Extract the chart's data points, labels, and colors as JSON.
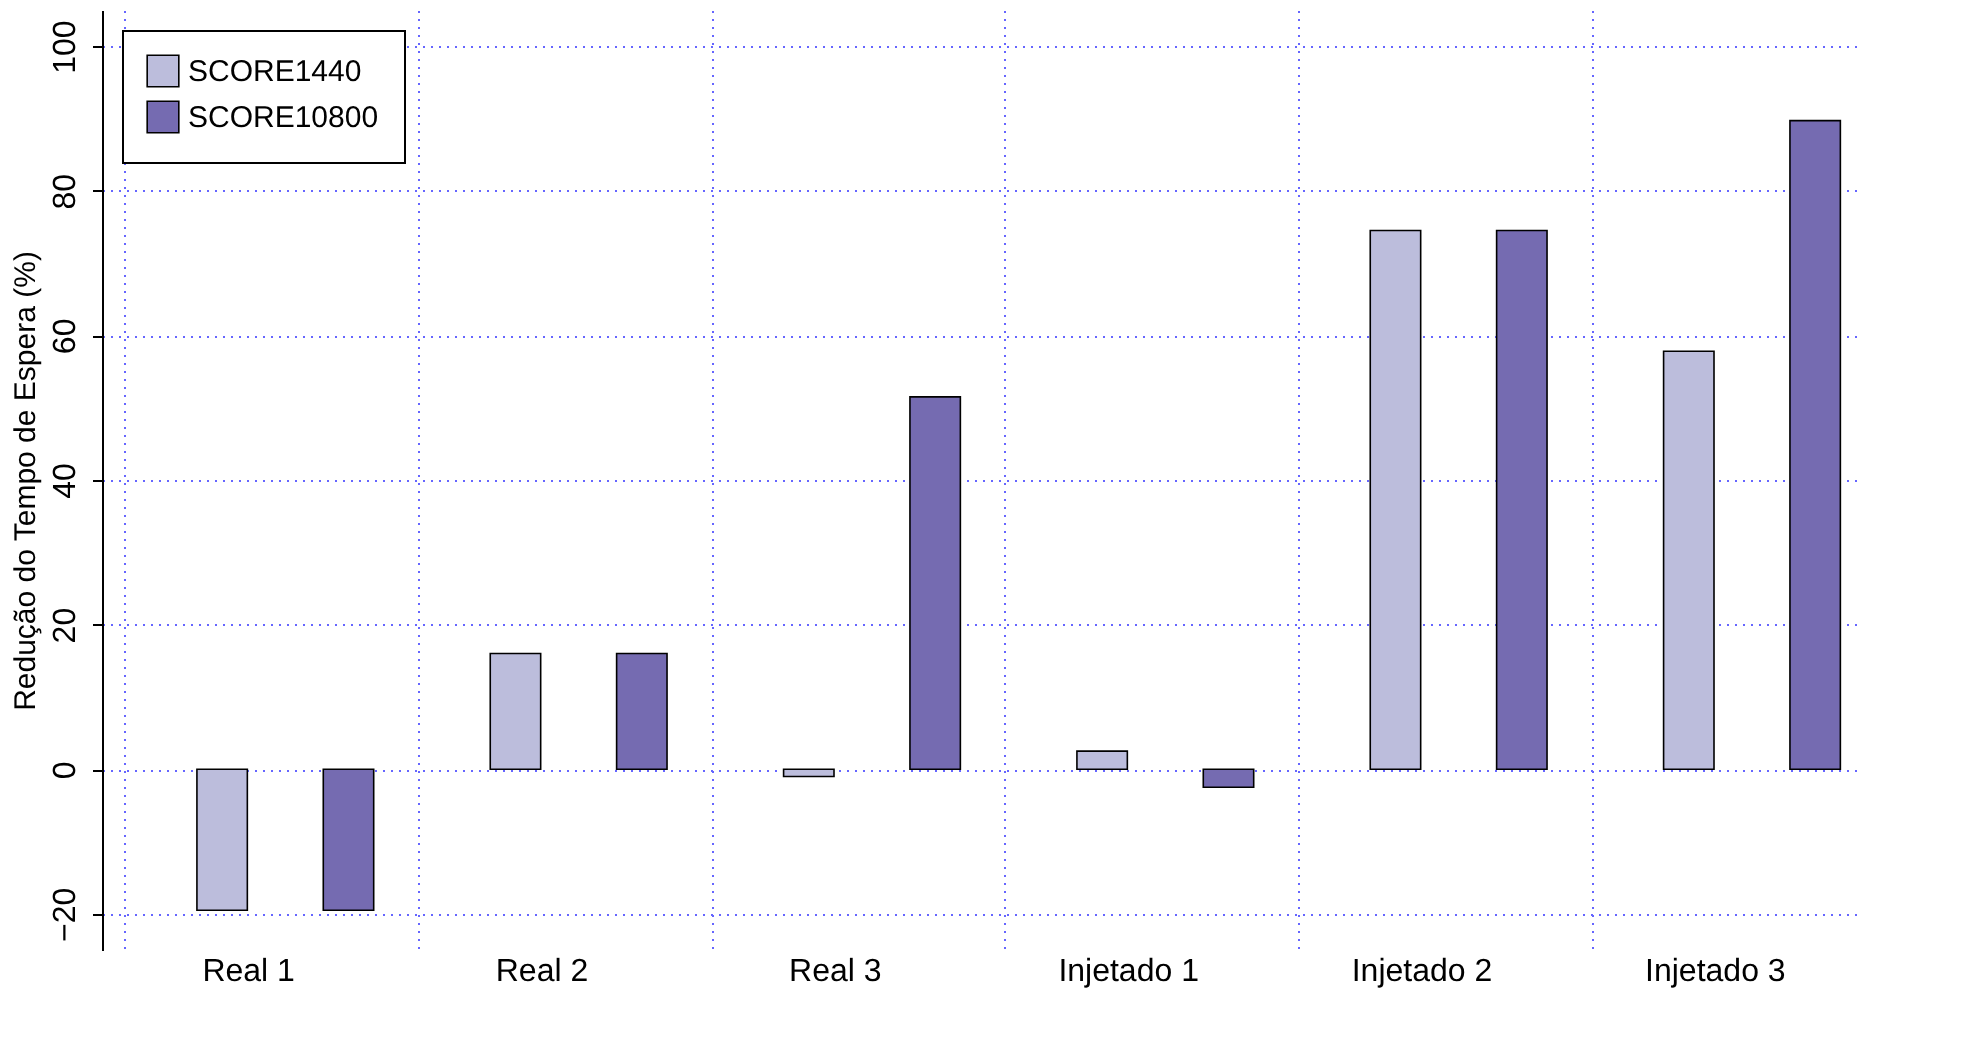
{
  "chart_data": {
    "type": "bar",
    "ylabel": "Redução do Tempo de Espera (%)",
    "categories": [
      "Real 1",
      "Real 2",
      "Real 3",
      "Injetado 1",
      "Injetado 2",
      "Injetado 3"
    ],
    "series": [
      {
        "name": "SCORE1440",
        "color": "#bcbddc",
        "values": [
          -19.5,
          16,
          -1,
          2.5,
          74.5,
          57.8
        ]
      },
      {
        "name": "SCORE10800",
        "color": "#756bb1",
        "values": [
          -19.5,
          16,
          51.5,
          -2.5,
          74.5,
          89.7
        ]
      }
    ],
    "ylim": [
      -25,
      105
    ],
    "yticks": [
      -20,
      0,
      20,
      40,
      60,
      80,
      100
    ],
    "grid": true,
    "legend": "top left"
  }
}
